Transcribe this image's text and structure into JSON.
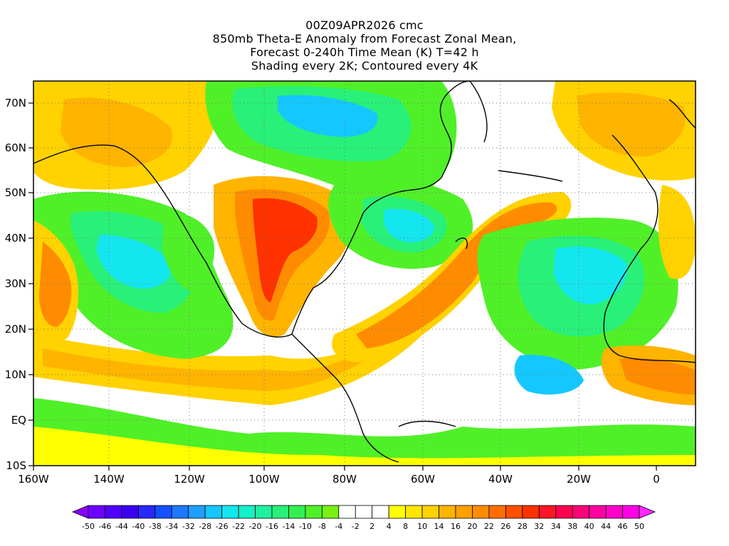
{
  "title": {
    "line1": "00Z09APR2026 cmc",
    "line2": "850mb Theta-E Anomaly from Forecast Zonal Mean,",
    "line3": "Forecast 0-240h Time Mean (K) T=42 h",
    "line4": "Shading every 2K; Contoured every 4K"
  },
  "axes": {
    "x_ticks": [
      "160W",
      "140W",
      "120W",
      "100W",
      "80W",
      "60W",
      "40W",
      "20W",
      "0"
    ],
    "y_ticks": [
      "70N",
      "60N",
      "50N",
      "40N",
      "30N",
      "20N",
      "10N",
      "EQ",
      "10S"
    ]
  },
  "colorbar": {
    "labels": [
      "-50",
      "-46",
      "-44",
      "-40",
      "-38",
      "-34",
      "-32",
      "-28",
      "-26",
      "-22",
      "-20",
      "-16",
      "-14",
      "-10",
      "-8",
      "-4",
      "-2",
      "2",
      "4",
      "8",
      "10",
      "14",
      "16",
      "20",
      "22",
      "26",
      "28",
      "32",
      "34",
      "38",
      "40",
      "44",
      "46",
      "50"
    ],
    "colors": [
      "#8a00ff",
      "#6e00ff",
      "#5000ff",
      "#3c00f0",
      "#2828ff",
      "#1450ff",
      "#1e78ff",
      "#1ea0ff",
      "#14c8ff",
      "#14e6f0",
      "#14f0c8",
      "#1ef0a0",
      "#28f078",
      "#32f050",
      "#50f028",
      "#78f014",
      "#ffffff",
      "#ffffff",
      "#ffffff",
      "#ffff00",
      "#ffe600",
      "#ffd200",
      "#ffb400",
      "#ffa000",
      "#ff8c00",
      "#ff6e00",
      "#ff5000",
      "#ff3200",
      "#ff1428",
      "#ff0050",
      "#ff0078",
      "#ff00a0",
      "#ff00c8",
      "#ff00e6",
      "#ff28ff"
    ]
  }
}
